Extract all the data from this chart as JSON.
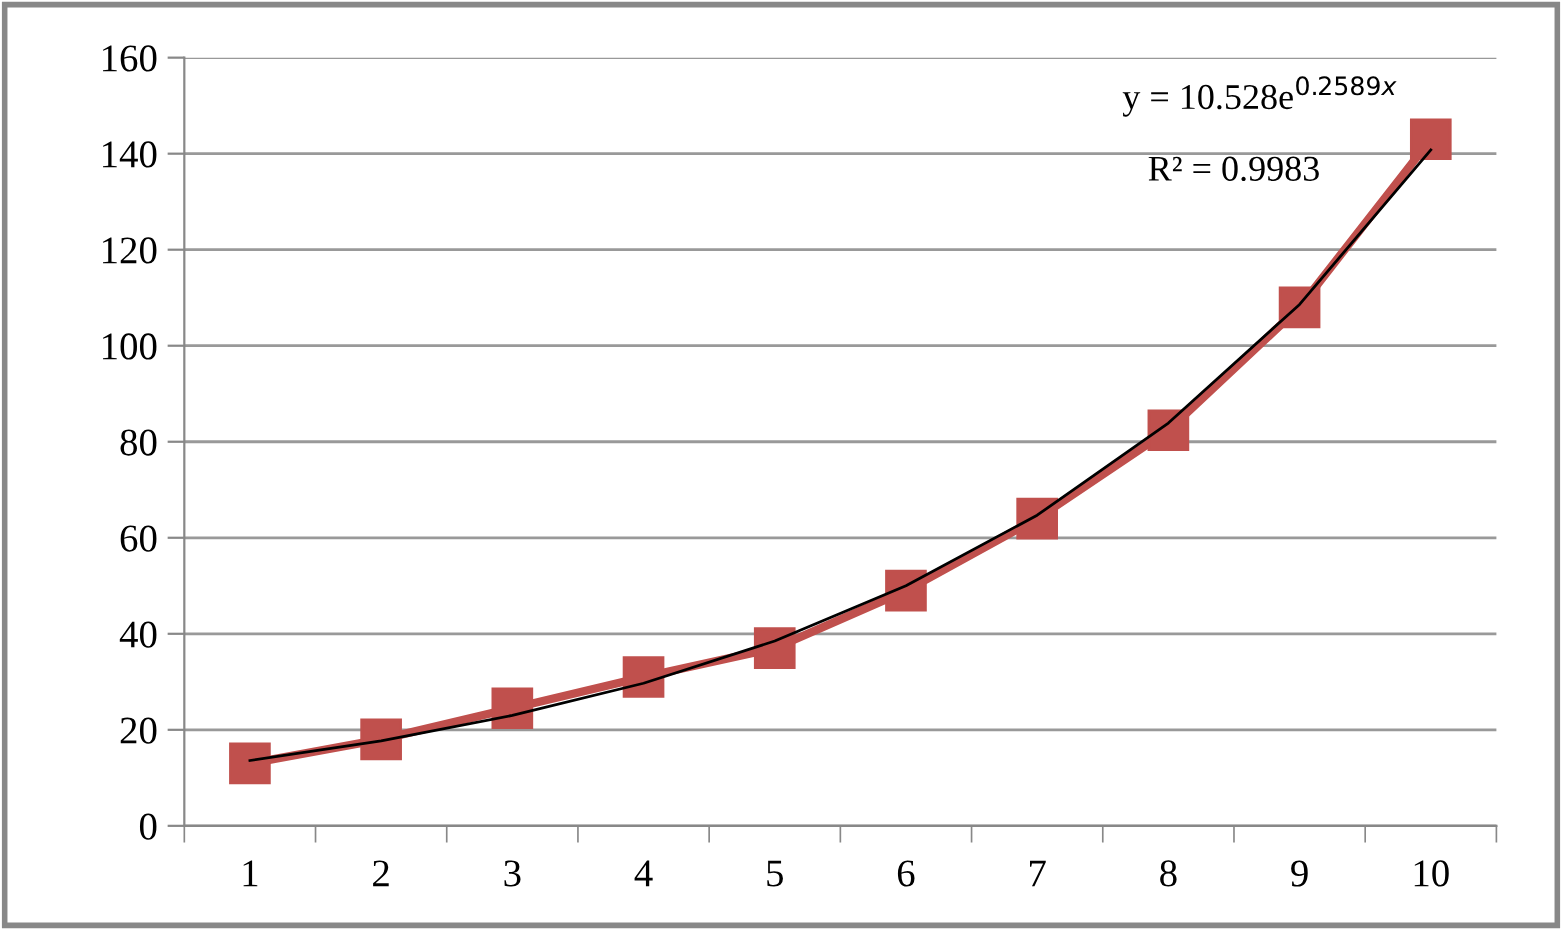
{
  "chart_data": {
    "type": "line",
    "categories": [
      "1",
      "2",
      "3",
      "4",
      "5",
      "6",
      "7",
      "8",
      "9",
      "10"
    ],
    "series": [
      {
        "color": "#c0504d",
        "marker": "square",
        "values": [
          13,
          18,
          24.5,
          31,
          37,
          49,
          64,
          82.4,
          108,
          143
        ]
      },
      {
        "color": "#000000",
        "marker": "none",
        "values": [
          13.6,
          17.7,
          23,
          29.7,
          38.5,
          50,
          64.7,
          83.9,
          108.6,
          140.8
        ]
      }
    ],
    "ylim": [
      0,
      160
    ],
    "yticks": [
      0,
      20,
      40,
      60,
      80,
      100,
      120,
      140,
      160
    ],
    "grid": "y",
    "annotations": [
      {
        "text": "y = 10.528e$^{0.2589x}$",
        "x": "10",
        "y": 143
      },
      "R² = 0.9983"
    ]
  }
}
